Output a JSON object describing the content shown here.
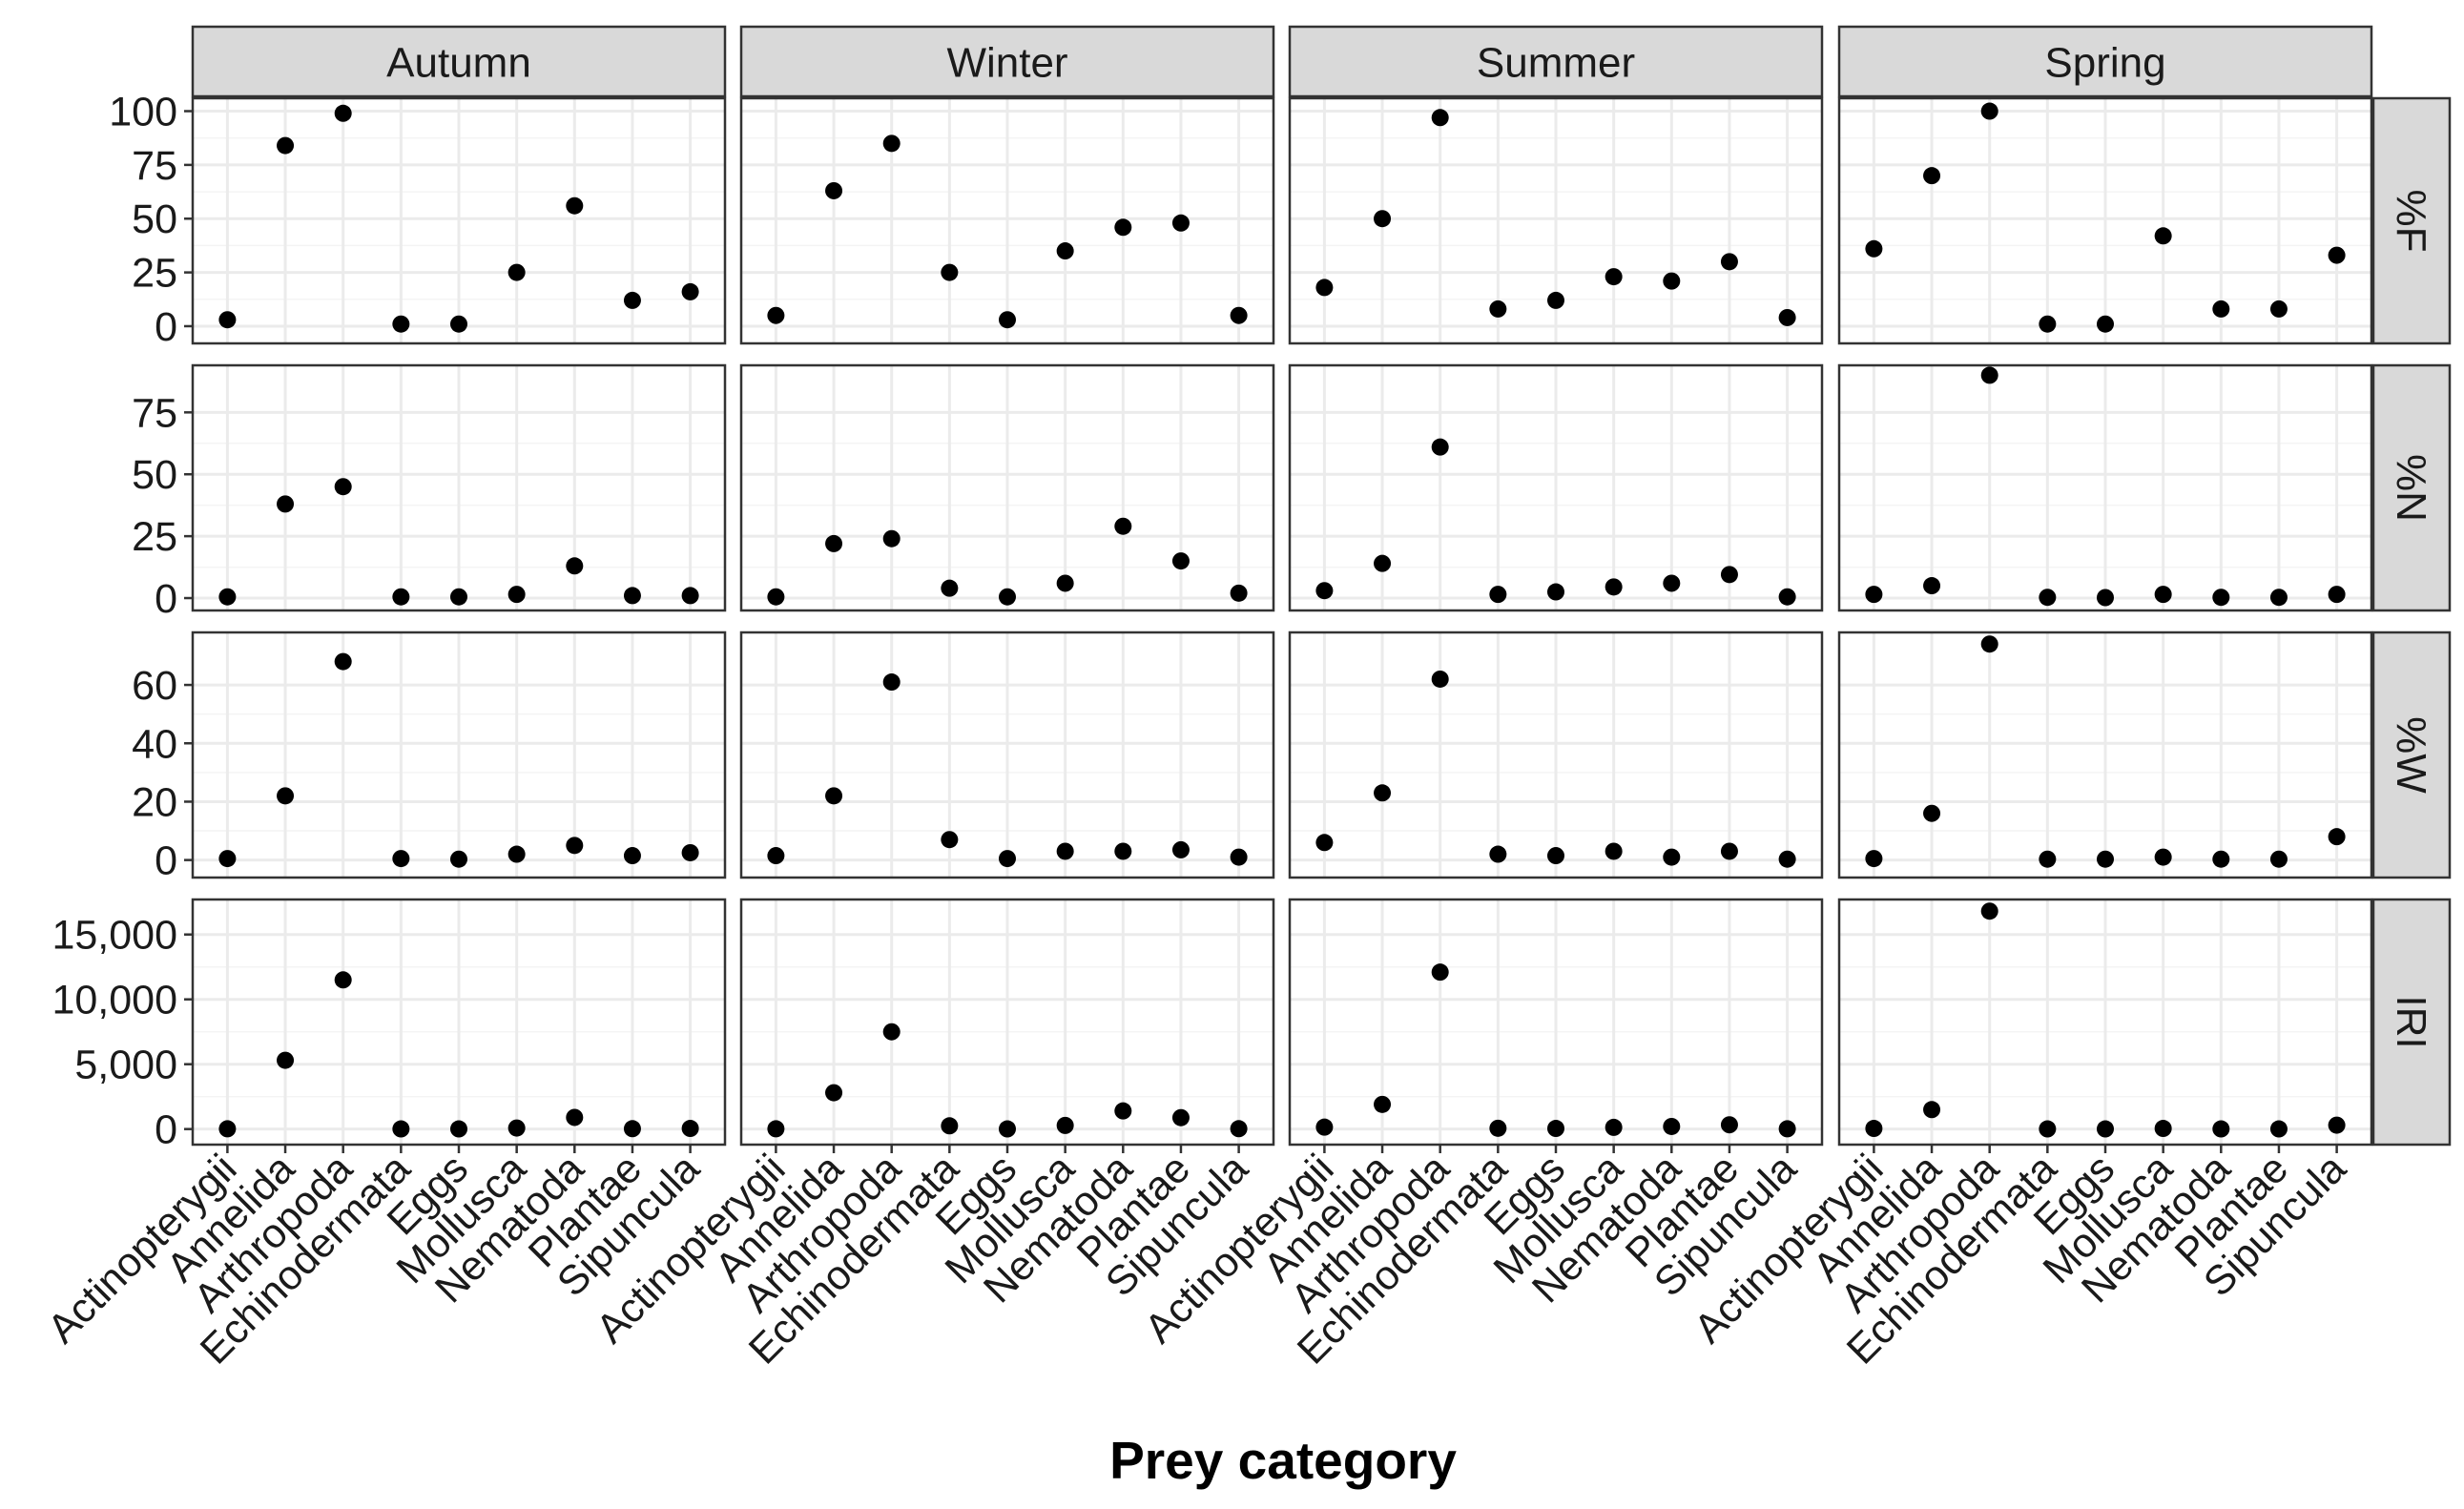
{
  "chart_data": {
    "type": "scatter",
    "xlabel": "Prey category",
    "ylabel": "",
    "categories": [
      "Actinopterygii",
      "Annelida",
      "Arthropoda",
      "Echinodermata",
      "Eggs",
      "Mollusca",
      "Nematoda",
      "Plantae",
      "Sipuncula"
    ],
    "facet_columns": [
      "Autumn",
      "Winter",
      "Summer",
      "Spring"
    ],
    "grid": true,
    "legend": "none",
    "point_color": "#000000",
    "strip_color": "#d9d9d9",
    "rows": [
      {
        "metric": "%F",
        "ylim": [
          -8,
          106
        ],
        "ticks": [
          0,
          25,
          50,
          75,
          100
        ],
        "tick_labels": [
          "0",
          "25",
          "50",
          "75",
          "100"
        ],
        "series": [
          {
            "facet": "Autumn",
            "values": [
              3,
              84,
              99,
              1,
              1,
              25,
              56,
              12,
              16
            ]
          },
          {
            "facet": "Winter",
            "values": [
              5,
              63,
              85,
              25,
              3,
              35,
              46,
              48,
              5
            ]
          },
          {
            "facet": "Summer",
            "values": [
              18,
              50,
              97,
              8,
              12,
              23,
              21,
              30,
              4
            ]
          },
          {
            "facet": "Spring",
            "values": [
              36,
              70,
              100,
              1,
              1,
              42,
              8,
              8,
              33
            ]
          }
        ]
      },
      {
        "metric": "%N",
        "ylim": [
          -5,
          94
        ],
        "ticks": [
          0,
          25,
          50,
          75
        ],
        "tick_labels": [
          "0",
          "25",
          "50",
          "75"
        ],
        "series": [
          {
            "facet": "Autumn",
            "values": [
              0.5,
              38,
              45,
              0.5,
              0.5,
              1.5,
              13,
              1,
              1
            ]
          },
          {
            "facet": "Winter",
            "values": [
              0.5,
              22,
              24,
              4,
              0.5,
              6,
              29,
              15,
              2
            ]
          },
          {
            "facet": "Summer",
            "values": [
              3,
              14,
              61,
              1.5,
              2.5,
              4.5,
              6,
              9.5,
              0.5
            ]
          },
          {
            "facet": "Spring",
            "values": [
              1.5,
              5,
              90,
              0.3,
              0.2,
              1.5,
              0.3,
              0.3,
              1.5
            ]
          }
        ]
      },
      {
        "metric": "%W",
        "ylim": [
          -6,
          78
        ],
        "ticks": [
          0,
          20,
          40,
          60
        ],
        "tick_labels": [
          "0",
          "20",
          "40",
          "60"
        ],
        "series": [
          {
            "facet": "Autumn",
            "values": [
              0.5,
              22,
              68,
              0.5,
              0.3,
              2,
              5,
              1.5,
              2.5
            ]
          },
          {
            "facet": "Winter",
            "values": [
              1.5,
              22,
              61,
              7,
              0.5,
              3,
              3,
              3.5,
              1
            ]
          },
          {
            "facet": "Summer",
            "values": [
              6,
              23,
              62,
              2,
              1.5,
              3,
              1,
              3,
              0.3
            ]
          },
          {
            "facet": "Spring",
            "values": [
              0.5,
              16,
              74,
              0.3,
              0.3,
              1,
              0.3,
              0.3,
              8
            ]
          }
        ]
      },
      {
        "metric": "IRI",
        "ylim": [
          -1200,
          17700
        ],
        "ticks": [
          0,
          5000,
          10000,
          15000
        ],
        "tick_labels": [
          "0",
          "5,000",
          "10,000",
          "15,000"
        ],
        "series": [
          {
            "facet": "Autumn",
            "values": [
              20,
              5300,
              11500,
              10,
              10,
              80,
              900,
              30,
              50
            ]
          },
          {
            "facet": "Winter",
            "values": [
              20,
              2800,
              7500,
              250,
              10,
              280,
              1400,
              880,
              30
            ]
          },
          {
            "facet": "Summer",
            "values": [
              150,
              1900,
              12100,
              60,
              50,
              130,
              200,
              330,
              20
            ]
          },
          {
            "facet": "Spring",
            "values": [
              50,
              1500,
              16800,
              10,
              10,
              50,
              10,
              10,
              300
            ]
          }
        ]
      }
    ]
  }
}
